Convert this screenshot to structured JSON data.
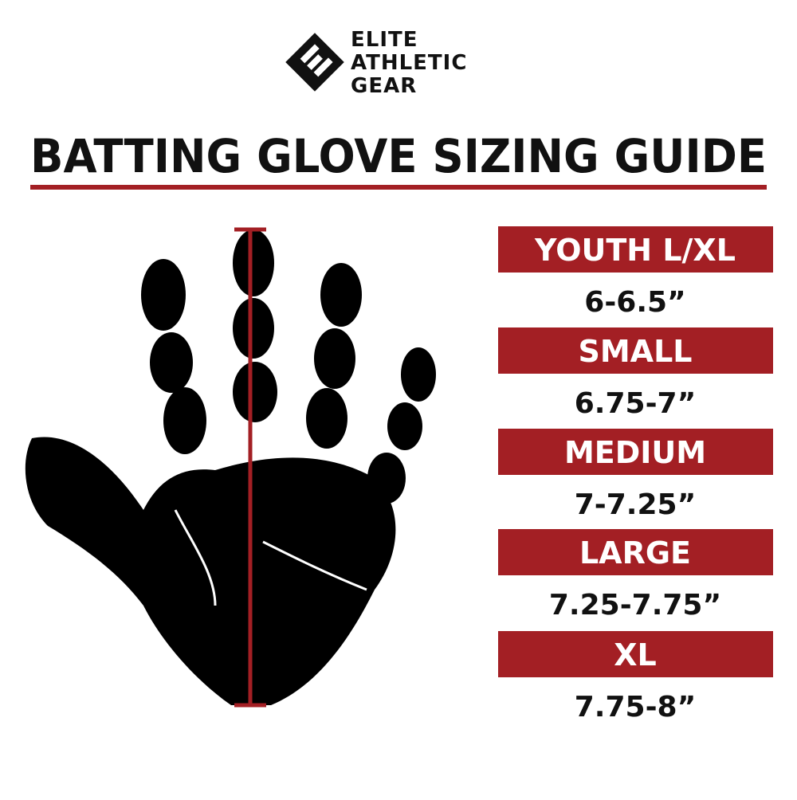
{
  "brand": {
    "lines": [
      "ELITE",
      "ATHLETIC",
      "GEAR"
    ]
  },
  "title": "BATTING GLOVE SIZING GUIDE",
  "sizes": [
    {
      "name": "YOUTH L/XL",
      "range": "6-6.5”"
    },
    {
      "name": "SMALL",
      "range": "6.75-7”"
    },
    {
      "name": "MEDIUM",
      "range": "7-7.25”"
    },
    {
      "name": "LARGE",
      "range": "7.25-7.75”"
    },
    {
      "name": "XL",
      "range": "7.75-8”"
    }
  ]
}
